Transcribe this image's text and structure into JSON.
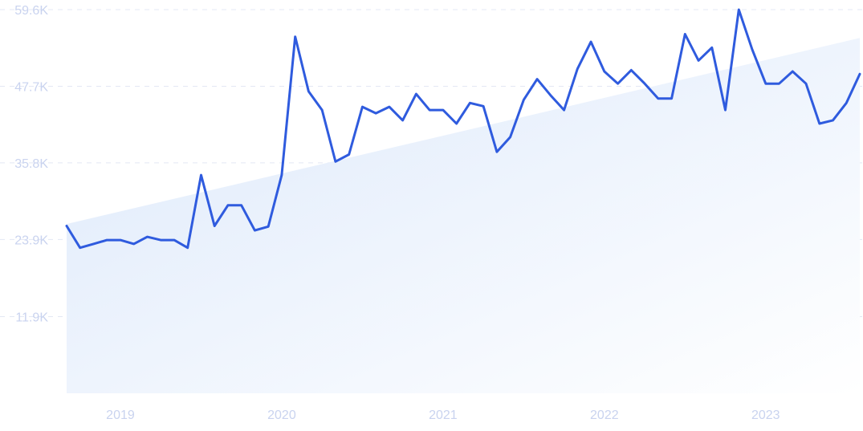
{
  "chart_data": {
    "type": "line",
    "title": "",
    "xlabel": "",
    "ylabel": "",
    "ylim": [
      0,
      59.6
    ],
    "xlim": [
      "2018-11",
      "2023-10"
    ],
    "y_ticks": [
      {
        "value": 11.9,
        "label": "11.9K"
      },
      {
        "value": 23.9,
        "label": "23.9K"
      },
      {
        "value": 35.8,
        "label": "35.8K"
      },
      {
        "value": 47.7,
        "label": "47.7K"
      },
      {
        "value": 59.6,
        "label": "59.6K"
      }
    ],
    "x_ticks": [
      {
        "value": "2019-03",
        "label": "2019"
      },
      {
        "value": "2020-03",
        "label": "2020"
      },
      {
        "value": "2021-03",
        "label": "2021"
      },
      {
        "value": "2022-03",
        "label": "2022"
      },
      {
        "value": "2023-03",
        "label": "2023"
      }
    ],
    "grid": true,
    "legend": "none",
    "colors": {
      "line": "#2f5bde",
      "area_top": "#dde9fb",
      "area_bottom": "#ffffff",
      "tick_text": "#c9d3ef",
      "grid": "#e3e8f4"
    },
    "series": [
      {
        "x": [
          "2018-11",
          "2018-12",
          "2019-01",
          "2019-02",
          "2019-03",
          "2019-04",
          "2019-05",
          "2019-06",
          "2019-07",
          "2019-08",
          "2019-09",
          "2019-10",
          "2019-11",
          "2019-12",
          "2020-01",
          "2020-02",
          "2020-03",
          "2020-04",
          "2020-05",
          "2020-06",
          "2020-07",
          "2020-08",
          "2020-09",
          "2020-10",
          "2020-11",
          "2020-12",
          "2021-01",
          "2021-02",
          "2021-03",
          "2021-04",
          "2021-05",
          "2021-06",
          "2021-07",
          "2021-08",
          "2021-09",
          "2021-10",
          "2021-11",
          "2021-12",
          "2022-01",
          "2022-02",
          "2022-03",
          "2022-04",
          "2022-05",
          "2022-06",
          "2022-07",
          "2022-08",
          "2022-09",
          "2022-10",
          "2022-11",
          "2022-12",
          "2023-01",
          "2023-02",
          "2023-03",
          "2023-04",
          "2023-05",
          "2023-06",
          "2023-07",
          "2023-08",
          "2023-09",
          "2023-10"
        ],
        "values": [
          26.0,
          22.6,
          23.2,
          23.8,
          23.8,
          23.2,
          24.3,
          23.8,
          23.8,
          22.6,
          33.9,
          26.0,
          29.2,
          29.2,
          25.3,
          25.9,
          33.9,
          55.4,
          46.9,
          44.0,
          36.0,
          37.1,
          44.5,
          43.5,
          44.5,
          42.4,
          46.5,
          44.0,
          44.0,
          41.9,
          45.1,
          44.6,
          37.5,
          39.8,
          45.6,
          48.8,
          46.3,
          44.0,
          50.4,
          54.6,
          50.0,
          48.1,
          50.2,
          48.1,
          45.8,
          45.8,
          55.8,
          51.7,
          53.7,
          44.0,
          59.6,
          53.4,
          48.1,
          48.1,
          50.0,
          48.1,
          41.9,
          42.4,
          45.1,
          49.6
        ]
      },
      {
        "type": "area",
        "x": [
          "2018-11",
          "2023-10"
        ],
        "values": [
          26.3,
          55.2
        ]
      }
    ]
  }
}
